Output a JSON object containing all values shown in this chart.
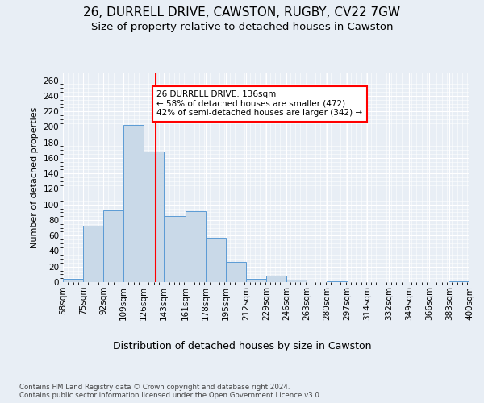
{
  "title": "26, DURRELL DRIVE, CAWSTON, RUGBY, CV22 7GW",
  "subtitle": "Size of property relative to detached houses in Cawston",
  "xlabel": "Distribution of detached houses by size in Cawston",
  "ylabel": "Number of detached properties",
  "bar_edges": [
    58,
    75,
    92,
    109,
    126,
    143,
    161,
    178,
    195,
    212,
    229,
    246,
    263,
    280,
    297,
    314,
    332,
    349,
    366,
    383,
    400
  ],
  "bar_heights": [
    4,
    73,
    92,
    203,
    168,
    85,
    91,
    57,
    26,
    4,
    8,
    3,
    0,
    1,
    0,
    0,
    0,
    0,
    0,
    1
  ],
  "bar_color": "#c9d9e8",
  "bar_edge_color": "#5b9bd5",
  "vline_x": 136,
  "vline_color": "red",
  "annotation_text": "26 DURRELL DRIVE: 136sqm\n← 58% of detached houses are smaller (472)\n42% of semi-detached houses are larger (342) →",
  "annotation_box_color": "white",
  "annotation_box_edge_color": "red",
  "ylim": [
    0,
    270
  ],
  "yticks": [
    0,
    20,
    40,
    60,
    80,
    100,
    120,
    140,
    160,
    180,
    200,
    220,
    240,
    260
  ],
  "background_color": "#e8eef5",
  "plot_background_color": "#e8eef5",
  "footer_text": "Contains HM Land Registry data © Crown copyright and database right 2024.\nContains public sector information licensed under the Open Government Licence v3.0.",
  "title_fontsize": 11,
  "subtitle_fontsize": 9.5,
  "xlabel_fontsize": 9,
  "ylabel_fontsize": 8,
  "tick_fontsize": 7.5
}
